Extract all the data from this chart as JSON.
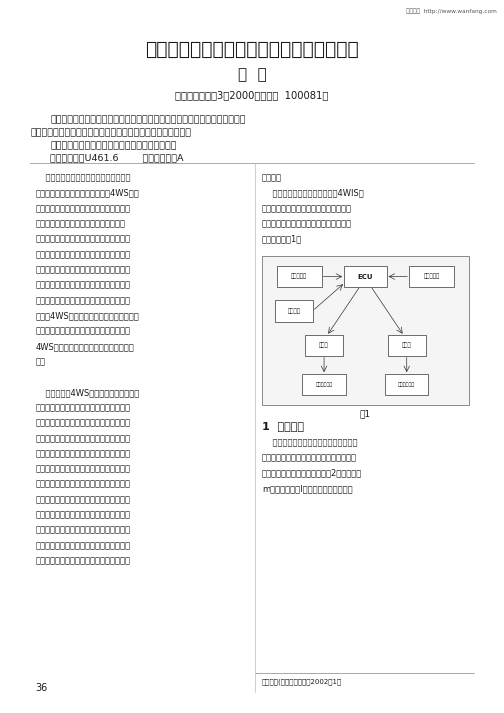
{
  "title": "四轮独立转向汽车高速时操纵稳定性的研究",
  "author": "束  凯",
  "affiliation": "（北京理工大学3系2000研，北京  100081）",
  "abstract_line1": "摘要：通过对汽车模型的分析，确定了一种控制方法，以便十四轮独立转向的",
  "abstract_line2": "汽车在高速变换车道行驶时，也能得到快速连续的操纵稳定性。",
  "keywords": "关键词：四轮独立转向汽车；模型分析；控制策略",
  "classnum": "中图分类号：U461.6        文献标识码：A",
  "col1_lines": [
    "    随着汽车工业的发展，汽车的操纵稳定",
    "性越是受到关注。四轮转向汽车（4WS）也",
    "得到了广泛的研究。顾名思义，四轮转向汽",
    "车是指四个车轮都是转向轮的汽车。低速",
    "时，前后轮进行逆相位转向，减小了转弯半",
    "径，提高了汽车的机动灵活性；高速时，前",
    "后轮进行同相位转向，使汽车易于按方向盘",
    "的意志产生的横摆角速度和横向加速度很快",
    "达到稳态响应，改善了高速行汽车的操纵稳",
    "定性。4WS汽车得到了较深入的研究，理论",
    "上比较成熟，并形成了产品化。实验证明，",
    "4WS能在很大程度上改善汽车的操纵稳定",
    "性。",
    "",
    "    虽然如此，4WS汽车在高速行驶时仍存",
    "在一定的问题：由于两后轮同时转向，在高",
    "速变换车道或紧急避闪时，汽车需要连续地",
    "改换行驶方向，前轮迅速变换行驶方向，后",
    "轮也应较迅速、连续地变换方向，以获得较",
    "好操舵响应特性。对于后轮采用液压执行机",
    "构的汽车，液压系统需要进行迅速、连续的",
    "往运运动，需要采用高性能的液压元件，这",
    "无疑增加了成本。如果后轮响应时间过长，",
    "将会影响汽车的操纵稳定性。因此，应当从",
    "控制方法上加以改进，以便在使用低灵敏度",
    "的液压元件时，仍能获得比较满意的动态特"
  ],
  "col1_bottom": "36",
  "col2_lines_top": [
    "性响应。",
    "    在此，我们对四轮独立转向（4WIS）",
    "汽车进行了研究。其前轮转角由方向盘控",
    "制，后轮有四个独立的液压缸控制。总体",
    "方案简图如图1。"
  ],
  "fig1_label": "图1",
  "section1_title": "1  模型分析",
  "col2_lines_sec1": [
    "    首先，进行汽车模型分析。使用二自由",
    "度汽车模型，考虑轮胎非线性侧偏力变化范",
    "围内，四轮转向的车辆模型如图2所示。图中",
    "m为整车质量，I为绕质心的模糊惯性力"
  ],
  "ref_text": "液压机械(液压气动工具，2002（1）",
  "watermark": "万方数据  http://www.wanfang.com",
  "bg_color": "#ffffff",
  "text_color": "#1a1a1a",
  "lm": 0.06,
  "rm": 0.94,
  "col_div": 0.505
}
